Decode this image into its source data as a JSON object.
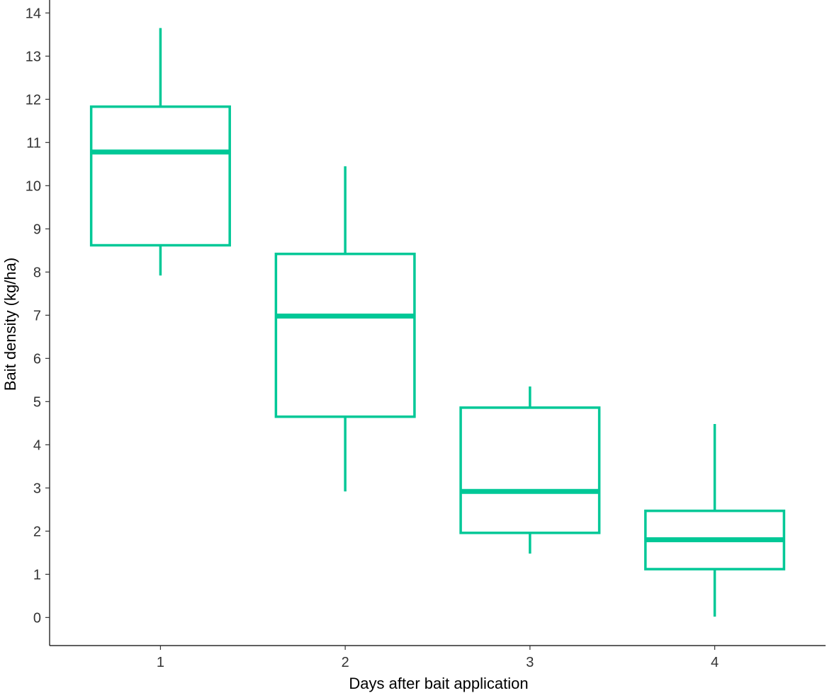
{
  "chart_data": {
    "type": "boxplot",
    "xlabel": "Days after bait application",
    "ylabel": "Bait density (kg/ha)",
    "categories": [
      "1",
      "2",
      "3",
      "4"
    ],
    "yticks": [
      "0",
      "1",
      "2",
      "3",
      "4",
      "5",
      "6",
      "7",
      "8",
      "9",
      "10",
      "11",
      "12",
      "13",
      "14"
    ],
    "ylim": [
      -0.65,
      14.3
    ],
    "grid": false,
    "legend": "none",
    "color": "#00C897",
    "boxes": [
      {
        "category": "1",
        "min": 7.92,
        "q1": 8.62,
        "median": 10.78,
        "q3": 11.83,
        "max": 13.65
      },
      {
        "category": "2",
        "min": 2.92,
        "q1": 4.65,
        "median": 6.98,
        "q3": 8.42,
        "max": 10.45
      },
      {
        "category": "3",
        "min": 1.48,
        "q1": 1.96,
        "median": 2.92,
        "q3": 4.86,
        "max": 5.35
      },
      {
        "category": "4",
        "min": 0.02,
        "q1": 1.12,
        "median": 1.8,
        "q3": 2.47,
        "max": 4.48
      }
    ]
  }
}
